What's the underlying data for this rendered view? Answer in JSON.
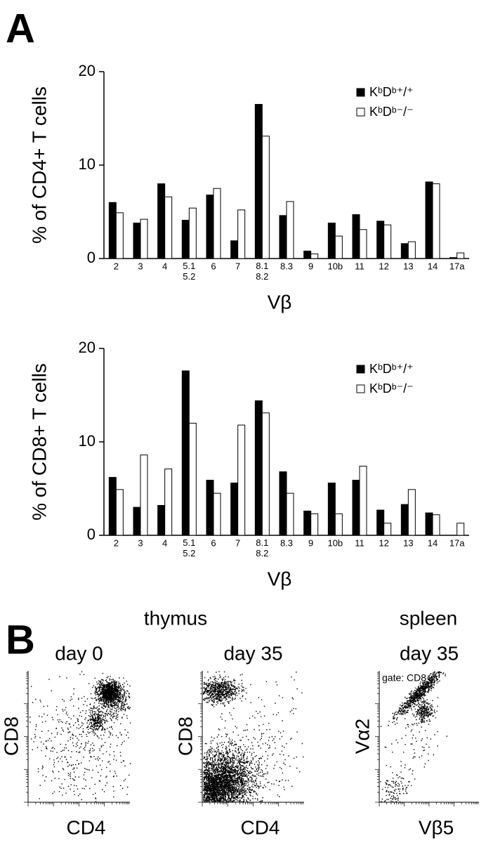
{
  "panel_a_label": "A",
  "chart_data": [
    {
      "type": "bar",
      "ylabel": "% of CD4+ T cells",
      "xlabel": "Vβ",
      "categories": [
        "2",
        "3",
        "4",
        "5.1\n5.2",
        "6",
        "7",
        "8.1\n8.2",
        "8.3",
        "9",
        "10b",
        "11",
        "12",
        "13",
        "14",
        "17a"
      ],
      "series": [
        {
          "name": "KᵇDᵇ⁺/⁺",
          "color": "#000000",
          "values": [
            6.0,
            3.8,
            8.0,
            4.1,
            6.8,
            1.9,
            16.5,
            4.6,
            0.8,
            3.8,
            4.7,
            4.0,
            1.6,
            8.2,
            0.1
          ]
        },
        {
          "name": "KᵇDᵇ⁻/⁻",
          "color": "#ffffff",
          "values": [
            4.9,
            4.2,
            6.6,
            5.4,
            7.5,
            5.2,
            13.1,
            6.1,
            0.5,
            2.4,
            3.1,
            3.6,
            1.8,
            8.0,
            0.6
          ]
        }
      ],
      "ylim": [
        0,
        20
      ],
      "yticks": [
        0,
        10,
        20
      ],
      "legend": "upper right"
    },
    {
      "type": "bar",
      "ylabel": "% of CD8+ T cells",
      "xlabel": "Vβ",
      "categories": [
        "2",
        "3",
        "4",
        "5.1\n5.2",
        "6",
        "7",
        "8.1\n8.2",
        "8.3",
        "9",
        "10b",
        "11",
        "12",
        "13",
        "14",
        "17a"
      ],
      "series": [
        {
          "name": "KᵇDᵇ⁺/⁺",
          "color": "#000000",
          "values": [
            6.2,
            3.0,
            3.2,
            17.6,
            5.9,
            5.6,
            14.4,
            6.8,
            2.6,
            5.6,
            5.9,
            2.7,
            3.3,
            2.4,
            0
          ]
        },
        {
          "name": "KᵇDᵇ⁻/⁻",
          "color": "#ffffff",
          "values": [
            4.9,
            8.6,
            7.1,
            12.0,
            4.5,
            11.8,
            13.1,
            4.5,
            2.3,
            2.3,
            7.4,
            1.3,
            4.9,
            2.2,
            1.3
          ]
        }
      ],
      "ylim": [
        0,
        20
      ],
      "yticks": [
        0,
        10,
        20
      ],
      "legend": "upper right"
    }
  ],
  "panel_b": {
    "label": "B",
    "groups": [
      "thymus",
      "spleen"
    ],
    "plots": [
      {
        "title": "day 0",
        "xlabel": "CD4",
        "ylabel": "CD8"
      },
      {
        "title": "day 35",
        "xlabel": "CD4",
        "ylabel": "CD8"
      },
      {
        "title": "day 35",
        "xlabel": "Vβ5",
        "ylabel": "Vα2",
        "gate": "gate: CD8+"
      }
    ]
  }
}
